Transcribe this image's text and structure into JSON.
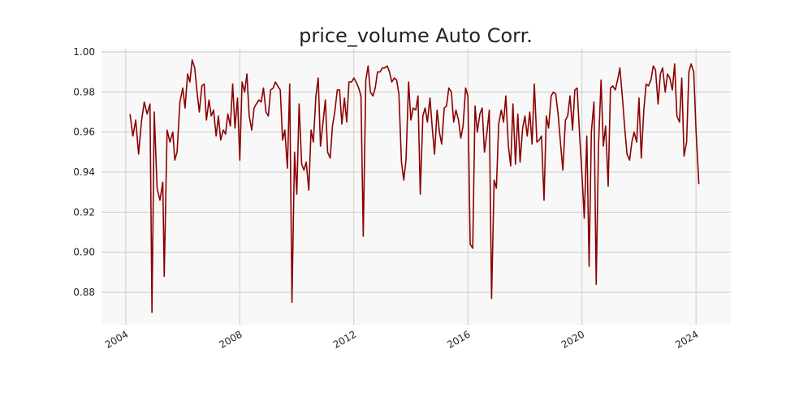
{
  "chart_data": {
    "type": "line",
    "title": "price_volume Auto Corr.",
    "x": [
      2004.15,
      2004.25,
      2004.35,
      2004.45,
      2004.55,
      2004.65,
      2004.75,
      2004.85,
      2004.92,
      2005.0,
      2005.1,
      2005.2,
      2005.3,
      2005.35,
      2005.45,
      2005.55,
      2005.65,
      2005.72,
      2005.8,
      2005.9,
      2006.0,
      2006.08,
      2006.17,
      2006.25,
      2006.33,
      2006.42,
      2006.5,
      2006.58,
      2006.67,
      2006.75,
      2006.83,
      2006.92,
      2007.0,
      2007.08,
      2007.17,
      2007.25,
      2007.33,
      2007.42,
      2007.5,
      2007.58,
      2007.67,
      2007.75,
      2007.83,
      2007.92,
      2008.0,
      2008.08,
      2008.17,
      2008.25,
      2008.33,
      2008.42,
      2008.5,
      2008.58,
      2008.67,
      2008.75,
      2008.83,
      2008.92,
      2009.0,
      2009.08,
      2009.17,
      2009.25,
      2009.33,
      2009.42,
      2009.5,
      2009.58,
      2009.67,
      2009.75,
      2009.83,
      2009.92,
      2010.0,
      2010.08,
      2010.17,
      2010.25,
      2010.33,
      2010.42,
      2010.5,
      2010.58,
      2010.67,
      2010.75,
      2010.83,
      2010.92,
      2011.0,
      2011.08,
      2011.17,
      2011.25,
      2011.33,
      2011.42,
      2011.5,
      2011.58,
      2011.67,
      2011.75,
      2011.83,
      2011.92,
      2012.0,
      2012.08,
      2012.17,
      2012.25,
      2012.33,
      2012.42,
      2012.5,
      2012.58,
      2012.67,
      2012.75,
      2012.83,
      2012.92,
      2013.0,
      2013.08,
      2013.17,
      2013.25,
      2013.33,
      2013.42,
      2013.5,
      2013.58,
      2013.67,
      2013.75,
      2013.83,
      2013.92,
      2014.0,
      2014.08,
      2014.17,
      2014.25,
      2014.33,
      2014.42,
      2014.5,
      2014.58,
      2014.67,
      2014.75,
      2014.83,
      2014.92,
      2015.0,
      2015.08,
      2015.17,
      2015.25,
      2015.33,
      2015.42,
      2015.5,
      2015.58,
      2015.67,
      2015.75,
      2015.83,
      2015.92,
      2016.0,
      2016.08,
      2016.17,
      2016.25,
      2016.33,
      2016.42,
      2016.5,
      2016.58,
      2016.67,
      2016.75,
      2016.83,
      2016.92,
      2017.0,
      2017.08,
      2017.17,
      2017.25,
      2017.33,
      2017.42,
      2017.5,
      2017.58,
      2017.67,
      2017.75,
      2017.83,
      2017.92,
      2018.0,
      2018.08,
      2018.17,
      2018.25,
      2018.33,
      2018.42,
      2018.5,
      2018.58,
      2018.67,
      2018.75,
      2018.83,
      2018.92,
      2019.0,
      2019.08,
      2019.17,
      2019.25,
      2019.33,
      2019.42,
      2019.5,
      2019.58,
      2019.67,
      2019.75,
      2019.83,
      2019.92,
      2020.0,
      2020.08,
      2020.17,
      2020.25,
      2020.33,
      2020.42,
      2020.5,
      2020.58,
      2020.67,
      2020.75,
      2020.83,
      2020.92,
      2021.0,
      2021.08,
      2021.17,
      2021.25,
      2021.33,
      2021.42,
      2021.5,
      2021.58,
      2021.67,
      2021.75,
      2021.83,
      2021.92,
      2022.0,
      2022.08,
      2022.17,
      2022.25,
      2022.33,
      2022.42,
      2022.5,
      2022.58,
      2022.67,
      2022.75,
      2022.83,
      2022.92,
      2023.0,
      2023.08,
      2023.17,
      2023.25,
      2023.33,
      2023.42,
      2023.5,
      2023.58,
      2023.67,
      2023.75,
      2023.83,
      2023.92,
      2024.0,
      2024.1
    ],
    "values": [
      0.969,
      0.958,
      0.966,
      0.949,
      0.965,
      0.975,
      0.969,
      0.974,
      0.87,
      0.97,
      0.932,
      0.926,
      0.935,
      0.888,
      0.961,
      0.955,
      0.96,
      0.946,
      0.95,
      0.975,
      0.982,
      0.972,
      0.989,
      0.985,
      0.996,
      0.992,
      0.98,
      0.97,
      0.983,
      0.984,
      0.966,
      0.976,
      0.968,
      0.971,
      0.958,
      0.968,
      0.956,
      0.961,
      0.959,
      0.969,
      0.963,
      0.984,
      0.962,
      0.977,
      0.946,
      0.985,
      0.98,
      0.989,
      0.968,
      0.961,
      0.972,
      0.974,
      0.976,
      0.975,
      0.982,
      0.97,
      0.968,
      0.981,
      0.982,
      0.985,
      0.983,
      0.981,
      0.956,
      0.961,
      0.942,
      0.984,
      0.875,
      0.95,
      0.929,
      0.974,
      0.944,
      0.941,
      0.945,
      0.931,
      0.961,
      0.955,
      0.978,
      0.987,
      0.953,
      0.965,
      0.976,
      0.95,
      0.947,
      0.963,
      0.97,
      0.981,
      0.981,
      0.964,
      0.977,
      0.965,
      0.985,
      0.985,
      0.987,
      0.985,
      0.982,
      0.978,
      0.908,
      0.986,
      0.993,
      0.98,
      0.978,
      0.982,
      0.99,
      0.99,
      0.992,
      0.992,
      0.993,
      0.99,
      0.985,
      0.987,
      0.986,
      0.979,
      0.945,
      0.936,
      0.946,
      0.985,
      0.966,
      0.972,
      0.971,
      0.978,
      0.929,
      0.968,
      0.972,
      0.965,
      0.977,
      0.962,
      0.949,
      0.971,
      0.96,
      0.954,
      0.972,
      0.973,
      0.982,
      0.98,
      0.965,
      0.971,
      0.966,
      0.957,
      0.963,
      0.982,
      0.978,
      0.904,
      0.902,
      0.973,
      0.96,
      0.969,
      0.972,
      0.95,
      0.96,
      0.971,
      0.877,
      0.936,
      0.932,
      0.964,
      0.971,
      0.965,
      0.978,
      0.953,
      0.943,
      0.974,
      0.944,
      0.969,
      0.945,
      0.962,
      0.968,
      0.958,
      0.97,
      0.954,
      0.984,
      0.955,
      0.956,
      0.958,
      0.926,
      0.968,
      0.962,
      0.978,
      0.98,
      0.979,
      0.968,
      0.954,
      0.941,
      0.966,
      0.968,
      0.978,
      0.961,
      0.981,
      0.982,
      0.958,
      0.939,
      0.917,
      0.958,
      0.893,
      0.96,
      0.975,
      0.884,
      0.953,
      0.986,
      0.953,
      0.963,
      0.933,
      0.982,
      0.983,
      0.981,
      0.986,
      0.992,
      0.977,
      0.962,
      0.949,
      0.946,
      0.955,
      0.96,
      0.955,
      0.977,
      0.947,
      0.971,
      0.984,
      0.983,
      0.986,
      0.993,
      0.991,
      0.974,
      0.989,
      0.992,
      0.98,
      0.989,
      0.987,
      0.981,
      0.994,
      0.968,
      0.965,
      0.987,
      0.948,
      0.955,
      0.99,
      0.994,
      0.99,
      0.961,
      0.934
    ],
    "color": "#8b0000",
    "xlim": [
      2003.15,
      2025.22
    ],
    "xticks": [
      2004,
      2008,
      2012,
      2016,
      2020,
      2024
    ],
    "ylim": [
      0.8638,
      1.0016
    ],
    "yticks": [
      {
        "value": 0.88,
        "label": "0.88"
      },
      {
        "value": 0.9,
        "label": "0.90"
      },
      {
        "value": 0.92,
        "label": "0.92"
      },
      {
        "value": 0.94,
        "label": "0.94"
      },
      {
        "value": 0.96,
        "label": "0.96"
      },
      {
        "value": 0.98,
        "label": "0.98"
      },
      {
        "value": 1.0,
        "label": "1.00"
      }
    ],
    "grid": true
  }
}
